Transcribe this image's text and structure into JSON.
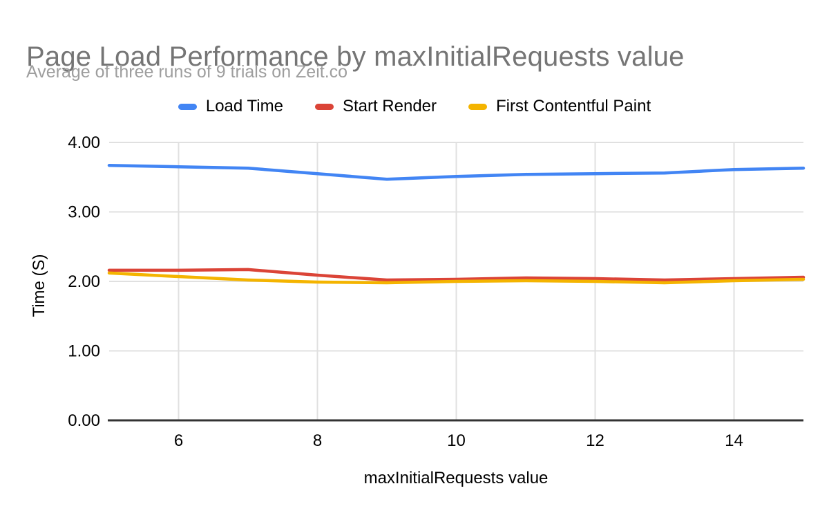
{
  "header": {
    "title": "Page Load Performance by maxInitialRequests value",
    "subtitle": "Average of three runs of 9 trials on Zeit.co"
  },
  "chart_data": {
    "type": "line",
    "x": [
      5,
      6,
      7,
      8,
      9,
      10,
      11,
      12,
      13,
      14,
      15
    ],
    "series": [
      {
        "name": "Load Time",
        "color": "#4285F4",
        "values": [
          3.67,
          3.65,
          3.63,
          3.55,
          3.47,
          3.51,
          3.54,
          3.55,
          3.56,
          3.61,
          3.63
        ]
      },
      {
        "name": "Start Render",
        "color": "#DB4437",
        "values": [
          2.16,
          2.16,
          2.17,
          2.09,
          2.02,
          2.03,
          2.05,
          2.04,
          2.02,
          2.04,
          2.06
        ]
      },
      {
        "name": "First Contentful Paint",
        "color": "#F4B400",
        "values": [
          2.12,
          2.07,
          2.02,
          1.99,
          1.98,
          2.0,
          2.01,
          2.0,
          1.98,
          2.01,
          2.03
        ]
      }
    ],
    "title": "Page Load Performance by maxInitialRequests value",
    "subtitle": "Average of three runs of 9 trials on Zeit.co",
    "xlabel": "maxInitialRequests value",
    "ylabel": "Time (S)",
    "xlim": [
      5,
      15
    ],
    "ylim": [
      0,
      4
    ],
    "x_ticks": [
      "6",
      "8",
      "10",
      "12",
      "14"
    ],
    "y_ticks": [
      "0.00",
      "1.00",
      "2.00",
      "3.00",
      "4.00"
    ],
    "grid": true,
    "legend_position": "top"
  },
  "colors": {
    "title": "#757575",
    "subtitle": "#9E9E9E",
    "grid": "#E0E0E0",
    "axis_line": "#333333",
    "tick_label": "#000000",
    "background": "#FFFFFF"
  }
}
